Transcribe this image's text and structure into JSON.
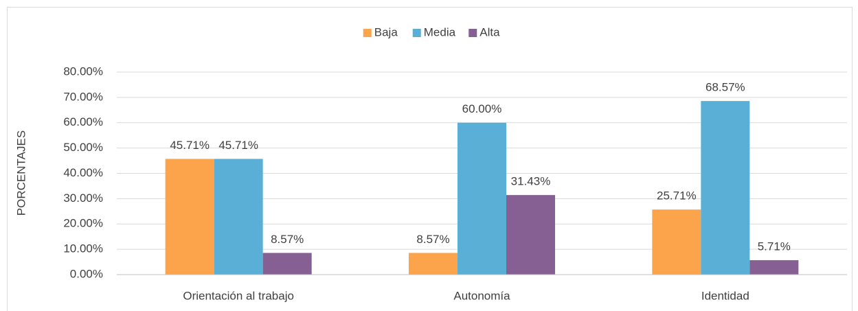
{
  "chart_data": {
    "type": "bar",
    "legend": "top",
    "y_label": "PORCENTAJES",
    "categories": [
      "Orientación al trabajo",
      "Autonomía",
      "Identidad"
    ],
    "series": [
      {
        "name": "Baja",
        "color": "#fca44c",
        "values": [
          45.71,
          8.57,
          25.71
        ],
        "value_labels": [
          "45.71%",
          "8.57%",
          "25.71%"
        ]
      },
      {
        "name": "Media",
        "color": "#5aafd7",
        "values": [
          45.71,
          60.0,
          68.57
        ],
        "value_labels": [
          "45.71%",
          "60.00%",
          "68.57%"
        ]
      },
      {
        "name": "Alta",
        "color": "#866092",
        "values": [
          8.57,
          31.43,
          5.71
        ],
        "value_labels": [
          "8.57%",
          "31.43%",
          "5.71%"
        ]
      }
    ],
    "ylim": [
      0,
      80
    ],
    "yticks": [
      {
        "value": 0,
        "label": "0.00%"
      },
      {
        "value": 10,
        "label": "10.00%"
      },
      {
        "value": 20,
        "label": "20.00%"
      },
      {
        "value": 30,
        "label": "30.00%"
      },
      {
        "value": 40,
        "label": "40.00%"
      },
      {
        "value": 50,
        "label": "50.00%"
      },
      {
        "value": 60,
        "label": "60.00%"
      },
      {
        "value": 70,
        "label": "70.00%"
      },
      {
        "value": 80,
        "label": "80.00%"
      }
    ],
    "grid": true
  }
}
